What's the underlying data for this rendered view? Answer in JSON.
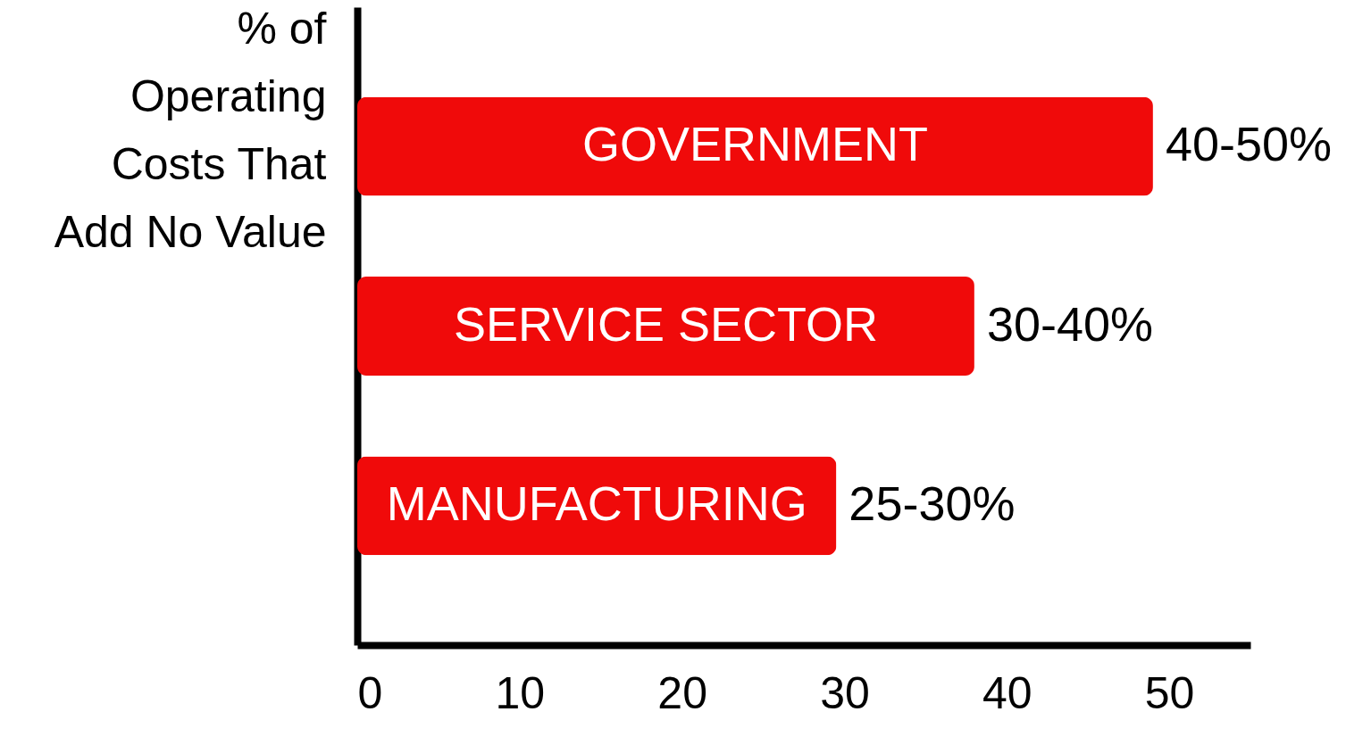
{
  "chart_data": {
    "type": "bar",
    "orientation": "horizontal",
    "ylabel": "% of Operating Costs That Add No Value",
    "categories": [
      "GOVERNMENT",
      "SERVICE SECTOR",
      "MANUFACTURING"
    ],
    "values": [
      49,
      38,
      29.5
    ],
    "color": "#f00a0a",
    "annotations": [
      {
        "text": "40-50%",
        "x": 49,
        "y": "GOVERNMENT"
      },
      {
        "text": "30-40%",
        "x": 38,
        "y": "SERVICE SECTOR"
      },
      {
        "text": "25-30%",
        "x": 29.5,
        "y": "MANUFACTURING"
      }
    ],
    "xlim": [
      0,
      55
    ],
    "xticks": [
      0,
      10,
      20,
      30,
      40,
      50
    ],
    "grid": false
  }
}
